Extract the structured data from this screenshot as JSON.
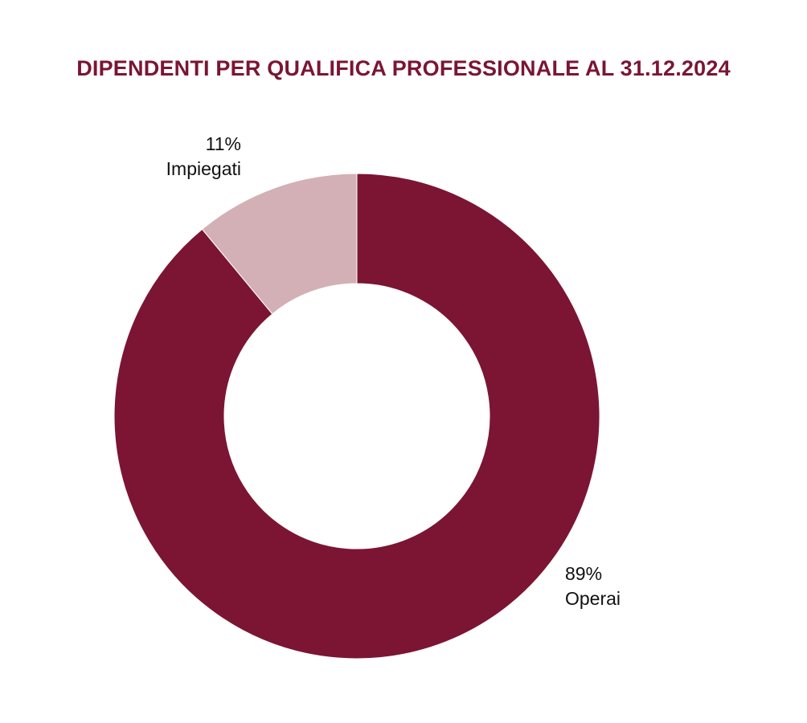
{
  "chart_data": {
    "type": "pie",
    "variant": "donut",
    "title": "DIPENDENTI PER QUALIFICA PROFESSIONALE AL 31.12.2024",
    "slices": [
      {
        "label": "Operai",
        "value": 89,
        "value_label": "89%",
        "color": "#7b1533"
      },
      {
        "label": "Impiegati",
        "value": 11,
        "value_label": "11%",
        "color": "#d3b0b5"
      }
    ]
  },
  "colors": {
    "title": "#7b1533",
    "separator": "#ffffff"
  }
}
